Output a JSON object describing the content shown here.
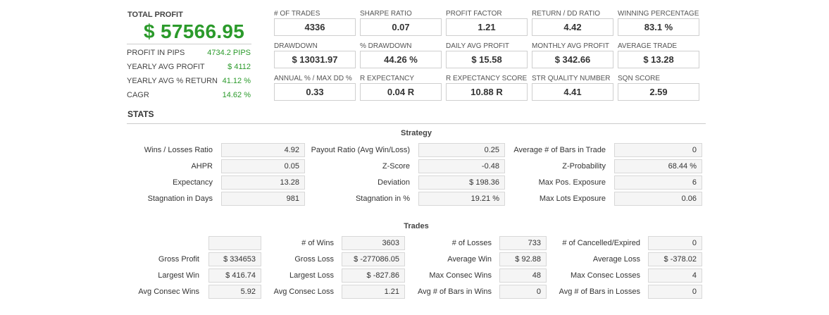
{
  "summary": {
    "total_profit_label": "TOTAL PROFIT",
    "total_profit_value": "$ 57566.95",
    "rows": [
      {
        "label": "PROFIT IN PIPS",
        "value": "4734.2 PIPS"
      },
      {
        "label": "YEARLY AVG PROFIT",
        "value": "$ 4112"
      },
      {
        "label": "YEARLY AVG % RETURN",
        "value": "41.12 %"
      },
      {
        "label": "CAGR",
        "value": "14.62 %"
      }
    ]
  },
  "metrics": [
    {
      "label": "# OF TRADES",
      "value": "4336"
    },
    {
      "label": "SHARPE RATIO",
      "value": "0.07"
    },
    {
      "label": "PROFIT FACTOR",
      "value": "1.21"
    },
    {
      "label": "RETURN / DD RATIO",
      "value": "4.42"
    },
    {
      "label": "WINNING PERCENTAGE",
      "value": "83.1 %"
    },
    {
      "label": "DRAWDOWN",
      "value": "$ 13031.97"
    },
    {
      "label": "% DRAWDOWN",
      "value": "44.26 %"
    },
    {
      "label": "DAILY AVG PROFIT",
      "value": "$ 15.58"
    },
    {
      "label": "MONTHLY AVG PROFIT",
      "value": "$ 342.66"
    },
    {
      "label": "AVERAGE TRADE",
      "value": "$ 13.28"
    },
    {
      "label": "ANNUAL % / MAX DD %",
      "value": "0.33"
    },
    {
      "label": "R EXPECTANCY",
      "value": "0.04 R"
    },
    {
      "label": "R EXPECTANCY SCORE",
      "value": "10.88 R"
    },
    {
      "label": "STR QUALITY NUMBER",
      "value": "4.41"
    },
    {
      "label": "SQN SCORE",
      "value": "2.59"
    }
  ],
  "stats_heading": "STATS",
  "strategy": {
    "title": "Strategy",
    "rows": [
      [
        {
          "label": "Wins / Losses Ratio",
          "value": "4.92"
        },
        {
          "label": "Payout Ratio (Avg Win/Loss)",
          "value": "0.25"
        },
        {
          "label": "Average # of Bars in Trade",
          "value": "0"
        }
      ],
      [
        {
          "label": "AHPR",
          "value": "0.05"
        },
        {
          "label": "Z-Score",
          "value": "-0.48"
        },
        {
          "label": "Z-Probability",
          "value": "68.44 %"
        }
      ],
      [
        {
          "label": "Expectancy",
          "value": "13.28"
        },
        {
          "label": "Deviation",
          "value": "$ 198.36"
        },
        {
          "label": "Max Pos. Exposure",
          "value": "6"
        }
      ],
      [
        {
          "label": "Stagnation in Days",
          "value": "981"
        },
        {
          "label": "Stagnation in %",
          "value": "19.21 %"
        },
        {
          "label": "Max Lots Exposure",
          "value": "0.06"
        }
      ]
    ]
  },
  "trades": {
    "title": "Trades",
    "rows": [
      [
        {
          "label": "",
          "value": ""
        },
        {
          "label": "# of Wins",
          "value": "3603"
        },
        {
          "label": "# of Losses",
          "value": "733"
        },
        {
          "label": "# of Cancelled/Expired",
          "value": "0"
        }
      ],
      [
        {
          "label": "Gross Profit",
          "value": "$ 334653"
        },
        {
          "label": "Gross Loss",
          "value": "$ -277086.05"
        },
        {
          "label": "Average Win",
          "value": "$ 92.88"
        },
        {
          "label": "Average Loss",
          "value": "$ -378.02"
        }
      ],
      [
        {
          "label": "Largest Win",
          "value": "$ 416.74"
        },
        {
          "label": "Largest Loss",
          "value": "$ -827.86"
        },
        {
          "label": "Max Consec Wins",
          "value": "48"
        },
        {
          "label": "Max Consec Losses",
          "value": "4"
        }
      ],
      [
        {
          "label": "Avg Consec Wins",
          "value": "5.92"
        },
        {
          "label": "Avg Consec Loss",
          "value": "1.21"
        },
        {
          "label": "Avg # of Bars in Wins",
          "value": "0"
        },
        {
          "label": "Avg # of Bars in Losses",
          "value": "0"
        }
      ]
    ]
  }
}
